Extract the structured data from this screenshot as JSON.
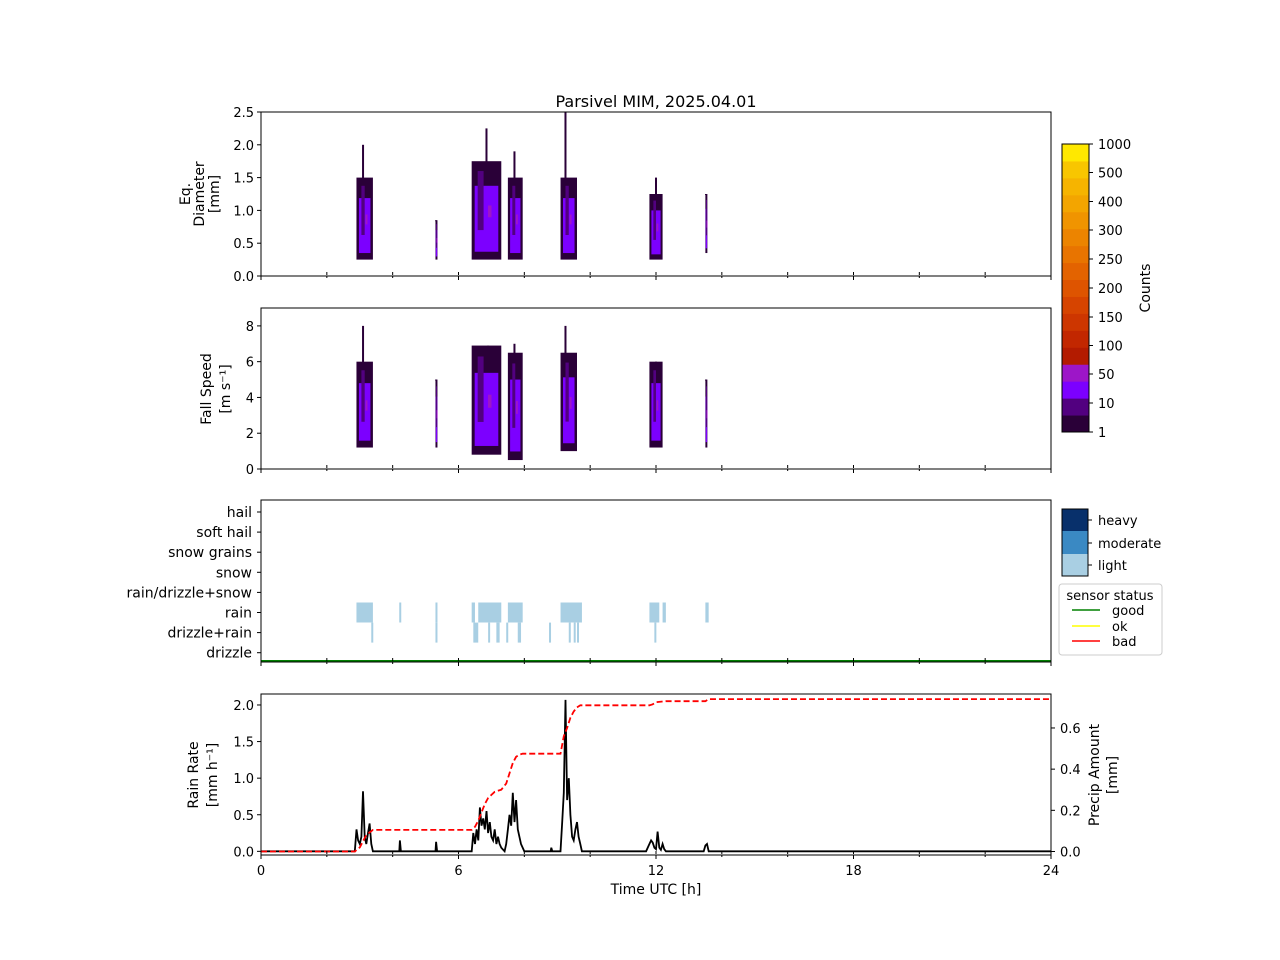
{
  "title": "Parsivel MIM, 2025.04.01",
  "colors": {
    "count_bins": [
      "#2a0038",
      "#520080",
      "#7c00ff",
      "#9d16c8",
      "#b31b00",
      "#c22700",
      "#cd3600",
      "#d64400",
      "#de5400",
      "#e36300",
      "#e87400",
      "#ec8400",
      "#f09400",
      "#f3a500",
      "#f6b400",
      "#f8c600",
      "#ffe800"
    ],
    "precip_light": "#a9cfe3",
    "precip_moderate": "#3a89c3",
    "precip_heavy": "#08306b",
    "status_good": "#008000",
    "status_ok": "#ffff00",
    "status_bad": "#ff0000",
    "rain_rate_line": "#000000",
    "precip_amount_line": "#ff0000"
  },
  "chart_data": [
    {
      "type": "heatmap",
      "panel": "diameter",
      "ylabel": [
        "Eq.",
        "Diameter",
        "[mm]"
      ],
      "xlim": [
        0,
        24
      ],
      "ylim": [
        0,
        2.5
      ],
      "yticks": [
        "0.0",
        "0.5",
        "1.0",
        "1.5",
        "2.0",
        "2.5"
      ],
      "ytick_values": [
        0,
        0.5,
        1.0,
        1.5,
        2.0,
        2.5
      ],
      "events": [
        {
          "t0": 2.9,
          "t1": 3.4,
          "ymin": 0.25,
          "ymax": 1.5,
          "peak": 2.0,
          "peak_t": 3.1
        },
        {
          "t0": 5.3,
          "t1": 5.35,
          "ymin": 0.25,
          "ymax": 0.85,
          "peak": 0.85,
          "peak_t": 5.32
        },
        {
          "t0": 6.4,
          "t1": 7.3,
          "ymin": 0.25,
          "ymax": 1.75,
          "peak": 2.25,
          "peak_t": 6.85
        },
        {
          "t0": 7.5,
          "t1": 7.95,
          "ymin": 0.25,
          "ymax": 1.5,
          "peak": 1.9,
          "peak_t": 7.7
        },
        {
          "t0": 9.1,
          "t1": 9.6,
          "ymin": 0.25,
          "ymax": 1.5,
          "peak": 2.5,
          "peak_t": 9.25
        },
        {
          "t0": 11.8,
          "t1": 12.2,
          "ymin": 0.25,
          "ymax": 1.25,
          "peak": 1.5,
          "peak_t": 12.0
        },
        {
          "t0": 13.5,
          "t1": 13.55,
          "ymin": 0.35,
          "ymax": 1.25,
          "peak": 1.25,
          "peak_t": 13.52
        }
      ]
    },
    {
      "type": "heatmap",
      "panel": "fall_speed",
      "ylabel": [
        "Fall Speed",
        "[m s⁻¹]"
      ],
      "xlim": [
        0,
        24
      ],
      "ylim": [
        0,
        9
      ],
      "yticks": [
        "0",
        "2",
        "4",
        "6",
        "8"
      ],
      "ytick_values": [
        0,
        2,
        4,
        6,
        8
      ],
      "events": [
        {
          "t0": 2.9,
          "t1": 3.4,
          "ymin": 1.2,
          "ymax": 6.0,
          "peak": 8.0,
          "peak_t": 3.1
        },
        {
          "t0": 5.3,
          "t1": 5.35,
          "ymin": 1.2,
          "ymax": 5.0,
          "peak": 5.0,
          "peak_t": 5.32
        },
        {
          "t0": 6.4,
          "t1": 7.3,
          "ymin": 0.8,
          "ymax": 6.9,
          "peak": 6.9,
          "peak_t": 6.9
        },
        {
          "t0": 7.5,
          "t1": 7.95,
          "ymin": 0.5,
          "ymax": 6.5,
          "peak": 7.0,
          "peak_t": 7.7
        },
        {
          "t0": 9.1,
          "t1": 9.6,
          "ymin": 1.0,
          "ymax": 6.5,
          "peak": 8.0,
          "peak_t": 9.25
        },
        {
          "t0": 11.8,
          "t1": 12.2,
          "ymin": 1.2,
          "ymax": 6.0,
          "peak": 6.0,
          "peak_t": 12.0
        },
        {
          "t0": 13.5,
          "t1": 13.55,
          "ymin": 1.2,
          "ymax": 5.0,
          "peak": 5.0,
          "peak_t": 13.52
        }
      ]
    },
    {
      "type": "bar",
      "panel": "precip_type",
      "categories": [
        "hail",
        "soft hail",
        "snow grains",
        "snow",
        "rain/drizzle+snow",
        "rain",
        "drizzle+rain",
        "drizzle"
      ],
      "xlim": [
        0,
        24
      ],
      "intensity_legend": [
        "heavy",
        "moderate",
        "light"
      ],
      "status_legend_title": "sensor status",
      "status_legend": [
        "good",
        "ok",
        "bad"
      ],
      "status_line": {
        "status": "good",
        "t0": 0,
        "t1": 24
      },
      "segments": [
        {
          "cat": "rain",
          "t0": 2.9,
          "t1": 3.4,
          "intensity": "light"
        },
        {
          "cat": "rain",
          "t0": 4.2,
          "t1": 4.25,
          "intensity": "light"
        },
        {
          "cat": "rain",
          "t0": 5.3,
          "t1": 5.35,
          "intensity": "light"
        },
        {
          "cat": "rain",
          "t0": 6.4,
          "t1": 6.5,
          "intensity": "light"
        },
        {
          "cat": "rain",
          "t0": 6.6,
          "t1": 7.3,
          "intensity": "light"
        },
        {
          "cat": "rain",
          "t0": 7.5,
          "t1": 7.95,
          "intensity": "light"
        },
        {
          "cat": "rain",
          "t0": 9.1,
          "t1": 9.75,
          "intensity": "light"
        },
        {
          "cat": "rain",
          "t0": 11.8,
          "t1": 12.1,
          "intensity": "light"
        },
        {
          "cat": "rain",
          "t0": 12.2,
          "t1": 12.3,
          "intensity": "light"
        },
        {
          "cat": "rain",
          "t0": 13.5,
          "t1": 13.6,
          "intensity": "light"
        },
        {
          "cat": "drizzle+rain",
          "t0": 3.35,
          "t1": 3.4,
          "intensity": "light"
        },
        {
          "cat": "drizzle+rain",
          "t0": 5.3,
          "t1": 5.35,
          "intensity": "light"
        },
        {
          "cat": "drizzle+rain",
          "t0": 6.45,
          "t1": 6.6,
          "intensity": "light"
        },
        {
          "cat": "drizzle+rain",
          "t0": 6.9,
          "t1": 6.95,
          "intensity": "light"
        },
        {
          "cat": "drizzle+rain",
          "t0": 7.15,
          "t1": 7.25,
          "intensity": "light"
        },
        {
          "cat": "drizzle+rain",
          "t0": 7.45,
          "t1": 7.5,
          "intensity": "light"
        },
        {
          "cat": "drizzle+rain",
          "t0": 7.8,
          "t1": 7.9,
          "intensity": "light"
        },
        {
          "cat": "drizzle+rain",
          "t0": 8.75,
          "t1": 8.8,
          "intensity": "light"
        },
        {
          "cat": "drizzle+rain",
          "t0": 9.35,
          "t1": 9.4,
          "intensity": "light"
        },
        {
          "cat": "drizzle+rain",
          "t0": 9.5,
          "t1": 9.55,
          "intensity": "light"
        },
        {
          "cat": "drizzle+rain",
          "t0": 9.6,
          "t1": 9.65,
          "intensity": "light"
        },
        {
          "cat": "drizzle+rain",
          "t0": 11.95,
          "t1": 12.0,
          "intensity": "light"
        }
      ]
    },
    {
      "type": "line",
      "panel": "rain_rate",
      "xlabel": "Time UTC [h]",
      "xlim": [
        0,
        24
      ],
      "xticks": [
        "0",
        "6",
        "12",
        "18",
        "24"
      ],
      "xtick_values": [
        0,
        6,
        12,
        18,
        24
      ],
      "ylabel": [
        "Rain Rate",
        "[mm h⁻¹]"
      ],
      "ylim": [
        -0.05,
        2.15
      ],
      "yticks": [
        "0.0",
        "0.5",
        "1.0",
        "1.5",
        "2.0"
      ],
      "ytick_values": [
        0,
        0.5,
        1.0,
        1.5,
        2.0
      ],
      "y2label": [
        "Precip Amount",
        "[mm]"
      ],
      "y2lim": [
        -0.017,
        0.765
      ],
      "y2ticks": [
        "0.0",
        "0.2",
        "0.4",
        "0.6"
      ],
      "y2tick_values": [
        0,
        0.2,
        0.4,
        0.6
      ],
      "series": [
        {
          "axis": "left",
          "style": "solid",
          "x": [
            0,
            2.85,
            2.9,
            2.95,
            3.0,
            3.05,
            3.1,
            3.15,
            3.2,
            3.25,
            3.3,
            3.35,
            3.4,
            3.45,
            4.2,
            4.22,
            4.25,
            5.3,
            5.32,
            5.35,
            6.4,
            6.45,
            6.5,
            6.55,
            6.6,
            6.65,
            6.7,
            6.75,
            6.8,
            6.85,
            6.9,
            6.95,
            7.0,
            7.05,
            7.1,
            7.15,
            7.2,
            7.25,
            7.3,
            7.4,
            7.45,
            7.5,
            7.55,
            7.6,
            7.65,
            7.7,
            7.75,
            7.8,
            7.85,
            7.9,
            7.95,
            8.0,
            8.8,
            8.82,
            8.85,
            9.1,
            9.15,
            9.2,
            9.25,
            9.3,
            9.35,
            9.4,
            9.45,
            9.5,
            9.55,
            9.6,
            9.65,
            9.7,
            9.75,
            11.7,
            11.8,
            11.85,
            11.9,
            11.95,
            12.0,
            12.05,
            12.1,
            12.15,
            12.2,
            12.25,
            12.3,
            13.45,
            13.5,
            13.55,
            13.6,
            24
          ],
          "values": [
            0,
            0,
            0.3,
            0.15,
            0.1,
            0.2,
            0.82,
            0.2,
            0.1,
            0.25,
            0.38,
            0.1,
            0,
            0,
            0,
            0.15,
            0,
            0,
            0.13,
            0,
            0,
            0.25,
            0.1,
            0.3,
            0.15,
            0.6,
            0.35,
            0.45,
            0.3,
            0.55,
            0.25,
            0.4,
            0.2,
            0.15,
            0.3,
            0.1,
            0.2,
            0.1,
            0.05,
            0,
            0.1,
            0.3,
            0.5,
            0.35,
            0.8,
            0.4,
            0.7,
            0.3,
            0.2,
            0.1,
            0.05,
            0,
            0,
            0.05,
            0,
            0,
            0.4,
            0.8,
            2.07,
            0.7,
            1.0,
            0.5,
            0.2,
            0.15,
            0.3,
            0.4,
            0.2,
            0.1,
            0,
            0,
            0.1,
            0.15,
            0.12,
            0.05,
            0.03,
            0.27,
            0.05,
            0.02,
            0.1,
            0.03,
            0,
            0,
            0.08,
            0.1,
            0,
            0
          ]
        },
        {
          "axis": "right",
          "style": "dashed",
          "x": [
            0,
            2.85,
            3.0,
            3.1,
            3.2,
            3.4,
            6.4,
            6.5,
            6.6,
            6.7,
            6.8,
            6.9,
            7.0,
            7.1,
            7.3,
            7.45,
            7.55,
            7.65,
            7.75,
            7.85,
            7.95,
            8.0,
            9.1,
            9.2,
            9.3,
            9.4,
            9.5,
            9.6,
            9.7,
            11.8,
            11.9,
            12.0,
            12.3,
            13.5,
            13.6,
            24
          ],
          "values": [
            0,
            0,
            0.02,
            0.05,
            0.08,
            0.105,
            0.105,
            0.12,
            0.15,
            0.19,
            0.23,
            0.26,
            0.275,
            0.29,
            0.3,
            0.33,
            0.38,
            0.43,
            0.46,
            0.47,
            0.475,
            0.475,
            0.475,
            0.56,
            0.6,
            0.65,
            0.68,
            0.7,
            0.71,
            0.71,
            0.715,
            0.725,
            0.73,
            0.73,
            0.74,
            0.74
          ]
        }
      ]
    }
  ],
  "colorbar": {
    "label": "Counts",
    "ticks": [
      "1",
      "10",
      "50",
      "100",
      "150",
      "200",
      "250",
      "300",
      "400",
      "500",
      "1000"
    ]
  }
}
